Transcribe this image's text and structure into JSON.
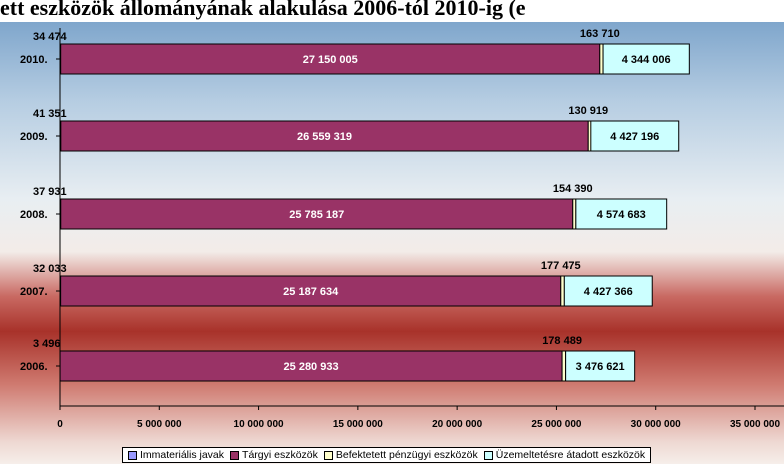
{
  "chart_data": {
    "type": "bar",
    "orientation": "horizontal",
    "stacked": true,
    "title": "ett eszközök állományának alakulása 2006-tól 2010-ig (e",
    "categories": [
      "2010.",
      "2009.",
      "2008.",
      "2007.",
      "2006."
    ],
    "series": [
      {
        "name": "Immateriális javak",
        "color": "#9999ff",
        "values": [
          34474,
          41351,
          37931,
          32033,
          3496
        ]
      },
      {
        "name": "Tárgyi eszközök",
        "color": "#993366",
        "values": [
          27150005,
          26559319,
          25785187,
          25187634,
          25280933
        ]
      },
      {
        "name": "Befektetett pénzügyi eszközök",
        "color": "#ffffcc",
        "values": [
          163710,
          130919,
          154390,
          177475,
          178489
        ]
      },
      {
        "name": "Üzemeltetésre átadott eszközök",
        "color": "#ccffff",
        "values": [
          4344006,
          4427196,
          4574683,
          4427366,
          3476621
        ]
      }
    ],
    "labels": {
      "immaterial": [
        "34 474",
        "41 351",
        "37 931",
        "32 033",
        "3 496"
      ],
      "tangible": [
        "27 150 005",
        "26 559 319",
        "25 785 187",
        "25 187 634",
        "25 280 933"
      ],
      "financial": [
        "163 710",
        "130 919",
        "154 390",
        "177 475",
        "178 489"
      ],
      "operational": [
        "4 344 006",
        "4 427 196",
        "4 574 683",
        "4 427 366",
        "3 476 621"
      ]
    },
    "xlim": [
      0,
      35000000
    ],
    "xticks": [
      0,
      5000000,
      10000000,
      15000000,
      20000000,
      25000000,
      30000000,
      35000000
    ],
    "xtick_labels": [
      "0",
      "5 000 000",
      "10 000 000",
      "15 000 000",
      "20 000 000",
      "25 000 000",
      "30 000 000",
      "35 000 000"
    ],
    "grid": false,
    "legend_position": "bottom"
  }
}
